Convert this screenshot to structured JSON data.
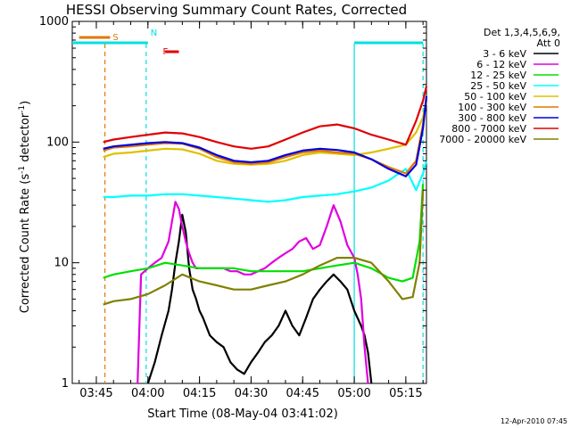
{
  "chart_data": {
    "type": "line",
    "title": "HESSI Observing Summary Count Rates, Corrected",
    "xlabel": "Start Time (08-May-04 03:41:02)",
    "ylabel_main": "Corrected Count Rate (s",
    "ylabel_sup1": "-1",
    "ylabel_mid": " detector",
    "ylabel_sup2": "-1",
    "ylabel_end": ")",
    "y_scale": "log",
    "ylim": [
      1,
      1000
    ],
    "x_range_minutes": [
      "03:38",
      "05:21"
    ],
    "x_ticks": [
      {
        "label": "03:45",
        "min": 225
      },
      {
        "label": "04:00",
        "min": 240
      },
      {
        "label": "04:15",
        "min": 255
      },
      {
        "label": "04:30",
        "min": 270
      },
      {
        "label": "04:45",
        "min": 285
      },
      {
        "label": "05:00",
        "min": 300
      },
      {
        "label": "05:15",
        "min": 315
      }
    ],
    "y_ticks": [
      {
        "label": "1",
        "value": 1
      },
      {
        "label": "10",
        "value": 10
      },
      {
        "label": "100",
        "value": 100
      },
      {
        "label": "1000",
        "value": 1000
      }
    ],
    "legend_header": "Det 1,3,4,5,6,9,",
    "legend_att": "Att 0",
    "legend_placement": "right",
    "footer_date": "12-Apr-2010 07:45",
    "flags": [
      {
        "label": "S",
        "color": "#e07800",
        "x0_min": 220,
        "x1_min": 229,
        "style": "dashed_after"
      },
      {
        "label": "N",
        "color": "#00e0e0",
        "x0_min": 218,
        "x1_min": 240
      },
      {
        "label": "F",
        "color": "#e00000",
        "x0_min": 245,
        "x1_min": 249
      }
    ],
    "vertical_lines": [
      {
        "min": 227.5,
        "color": "#e07800",
        "dash": true
      },
      {
        "min": 239.5,
        "color": "#00e0e0",
        "dash": true
      },
      {
        "min": 300,
        "color": "#00e0e0",
        "dash": false
      },
      {
        "min": 320,
        "color": "#00e0e0",
        "dash": true
      }
    ],
    "series": [
      {
        "name": "3 - 6 keV",
        "color": "#000000",
        "x": [
          240,
          242,
          244,
          246,
          247,
          248,
          249,
          250,
          251,
          252,
          253,
          254,
          255,
          256,
          258,
          260,
          262,
          264,
          266,
          268,
          270,
          272,
          274,
          276,
          278,
          280,
          282,
          284,
          286,
          288,
          290,
          292,
          294,
          296,
          298,
          300,
          302,
          303,
          304,
          305
        ],
        "values": [
          1,
          1.5,
          2.5,
          4,
          6,
          10,
          15,
          25,
          18,
          9,
          6,
          5,
          4,
          3.5,
          2.5,
          2.2,
          2,
          1.5,
          1.3,
          1.2,
          1.5,
          1.8,
          2.2,
          2.5,
          3,
          4,
          3,
          2.5,
          3.5,
          5,
          6,
          7,
          8,
          7,
          6,
          4,
          3,
          2.5,
          1.8,
          1
        ]
      },
      {
        "name": "6 - 12 keV",
        "color": "#e000e0",
        "x": [
          237,
          238,
          240,
          242,
          244,
          246,
          247,
          248,
          249,
          250,
          251,
          252,
          253,
          254,
          256,
          258,
          260,
          262,
          264,
          266,
          268,
          270,
          272,
          274,
          276,
          278,
          280,
          282,
          284,
          286,
          288,
          290,
          292,
          294,
          296,
          298,
          300,
          301,
          302,
          303,
          304
        ],
        "values": [
          1,
          8,
          9,
          10,
          11,
          15,
          22,
          32,
          28,
          20,
          15,
          12,
          10,
          9,
          9,
          9,
          9,
          9,
          8.5,
          8.5,
          8,
          8,
          8.5,
          9,
          10,
          11,
          12,
          13,
          15,
          16,
          13,
          14,
          20,
          30,
          22,
          14,
          11,
          8,
          5,
          2,
          1
        ]
      },
      {
        "name": "12 - 25 keV",
        "color": "#00e000",
        "x": [
          227,
          230,
          235,
          240,
          245,
          250,
          255,
          260,
          265,
          270,
          275,
          280,
          285,
          290,
          295,
          300,
          305,
          310,
          314,
          317,
          319,
          320
        ],
        "values": [
          7.5,
          8,
          8.5,
          9,
          10,
          9.5,
          9,
          9,
          9,
          8.5,
          8.5,
          8.5,
          8.5,
          9,
          9.5,
          10,
          9,
          7.5,
          7,
          7.5,
          15,
          45
        ]
      },
      {
        "name": "25 - 50 keV",
        "color": "#00ffff",
        "x": [
          227,
          230,
          235,
          240,
          245,
          250,
          255,
          260,
          265,
          270,
          275,
          280,
          285,
          290,
          295,
          300,
          305,
          310,
          315,
          318,
          320,
          321
        ],
        "values": [
          35,
          35,
          36,
          36,
          37,
          37,
          36,
          35,
          34,
          33,
          32,
          33,
          35,
          36,
          37,
          39,
          42,
          48,
          60,
          40,
          55,
          70
        ]
      },
      {
        "name": "50 - 100 keV",
        "color": "#e0c000",
        "x": [
          227,
          230,
          235,
          240,
          245,
          250,
          255,
          260,
          265,
          270,
          275,
          280,
          285,
          290,
          295,
          300,
          305,
          310,
          315,
          318,
          320,
          321
        ],
        "values": [
          75,
          80,
          82,
          85,
          88,
          87,
          80,
          70,
          66,
          65,
          66,
          70,
          78,
          82,
          80,
          78,
          82,
          88,
          95,
          120,
          160,
          220
        ]
      },
      {
        "name": "100 - 300 keV",
        "color": "#e07800",
        "x": [
          227,
          230,
          235,
          240,
          245,
          250,
          255,
          260,
          265,
          270,
          275,
          280,
          285,
          290,
          295,
          300,
          305,
          310,
          315,
          318,
          320,
          321
        ],
        "values": [
          85,
          90,
          92,
          95,
          98,
          97,
          88,
          75,
          68,
          66,
          68,
          75,
          82,
          85,
          82,
          80,
          72,
          62,
          55,
          70,
          140,
          230
        ]
      },
      {
        "name": "300 - 800 keV",
        "color": "#0000e0",
        "x": [
          227,
          230,
          235,
          240,
          245,
          250,
          255,
          260,
          265,
          270,
          275,
          280,
          285,
          290,
          295,
          300,
          305,
          310,
          315,
          318,
          320,
          321
        ],
        "values": [
          88,
          92,
          95,
          98,
          100,
          98,
          90,
          78,
          70,
          68,
          70,
          78,
          85,
          88,
          86,
          82,
          72,
          60,
          52,
          65,
          130,
          240
        ]
      },
      {
        "name": "800 - 7000 keV",
        "color": "#e00000",
        "x": [
          227,
          230,
          235,
          240,
          245,
          250,
          255,
          260,
          265,
          270,
          275,
          280,
          285,
          290,
          295,
          300,
          305,
          310,
          315,
          318,
          320,
          321
        ],
        "values": [
          100,
          105,
          110,
          115,
          120,
          118,
          110,
          100,
          92,
          88,
          92,
          105,
          120,
          135,
          140,
          130,
          115,
          105,
          95,
          150,
          220,
          290
        ]
      },
      {
        "name": "7000 - 20000 keV",
        "color": "#808000",
        "x": [
          227,
          230,
          235,
          240,
          245,
          250,
          255,
          260,
          265,
          270,
          275,
          280,
          285,
          290,
          295,
          300,
          305,
          310,
          314,
          317,
          319,
          320
        ],
        "values": [
          4.5,
          4.8,
          5,
          5.5,
          6.5,
          8,
          7,
          6.5,
          6,
          6,
          6.5,
          7,
          8,
          9.5,
          11,
          11,
          10,
          7,
          5,
          5.2,
          10,
          40
        ]
      }
    ]
  }
}
